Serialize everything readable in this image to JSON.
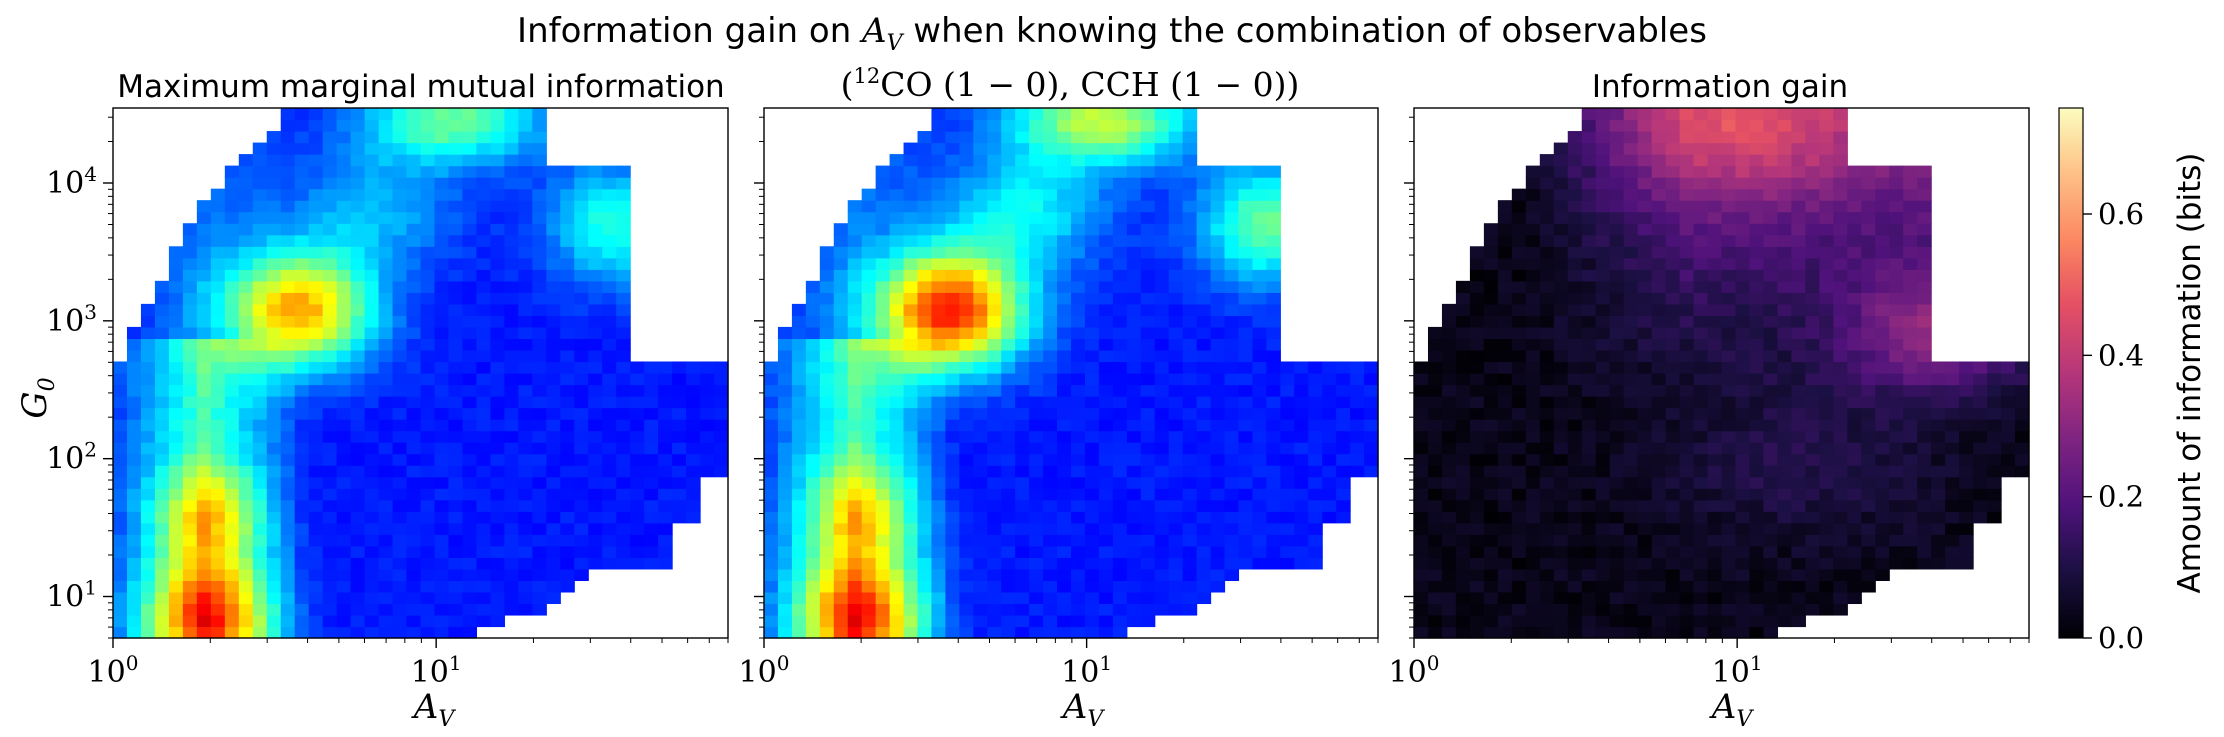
{
  "figure": {
    "title_plain": "Information gain on ",
    "title_var": "A",
    "title_sub": "V",
    "title_rest": " when knowing the combination of observables"
  },
  "colorbar": {
    "label": "Amount of information (bits)",
    "ticks": [
      "0.0",
      "0.2",
      "0.4",
      "0.6"
    ]
  },
  "chart_data": [
    {
      "type": "heatmap",
      "title": "Maximum marginal mutual information",
      "xlabel": "A_V",
      "ylabel": "G_0",
      "xscale": "log",
      "yscale": "log",
      "xlim": [
        1,
        80
      ],
      "ylim": [
        5,
        35000
      ],
      "x_ticks": [
        "10^0",
        "10^1"
      ],
      "y_ticks": [
        "10^1",
        "10^2",
        "10^3",
        "10^4"
      ],
      "colormap": "jet",
      "value_range": [
        0,
        0.75
      ],
      "description_peaks": [
        {
          "A_V": 3.8,
          "G_0": 1200,
          "value": 0.55
        },
        {
          "A_V": 2.0,
          "G_0": 8,
          "value": 0.5
        },
        {
          "A_V": 12,
          "G_0": 25000,
          "value": 0.35
        },
        {
          "A_V": 40,
          "G_0": 8000,
          "value": 0.3
        }
      ]
    },
    {
      "type": "heatmap",
      "title_tex_parts": [
        "(",
        "12",
        "CO (1 − 0), CCH (1 − 0))"
      ],
      "xlabel": "A_V",
      "xscale": "log",
      "yscale": "log",
      "xlim": [
        1,
        80
      ],
      "ylim": [
        5,
        35000
      ],
      "x_ticks": [
        "10^0",
        "10^1"
      ],
      "colormap": "jet",
      "value_range": [
        0,
        0.75
      ],
      "description_peaks": [
        {
          "A_V": 4.0,
          "G_0": 1200,
          "value": 0.68
        },
        {
          "A_V": 2.0,
          "G_0": 8,
          "value": 0.5
        },
        {
          "A_V": 12,
          "G_0": 25000,
          "value": 0.55
        },
        {
          "A_V": 40,
          "G_0": 8000,
          "value": 0.4
        }
      ]
    },
    {
      "type": "heatmap",
      "title": "Information gain",
      "xlabel": "A_V",
      "xscale": "log",
      "yscale": "log",
      "xlim": [
        1,
        80
      ],
      "ylim": [
        5,
        35000
      ],
      "x_ticks": [
        "10^0",
        "10^1"
      ],
      "colormap": "magma",
      "value_range": [
        0,
        0.75
      ],
      "description_peaks": [
        {
          "A_V": 10,
          "G_0": 25000,
          "value": 0.42
        },
        {
          "A_V": 40,
          "G_0": 900,
          "value": 0.38
        },
        {
          "A_V": 3,
          "G_0": 10,
          "value": 0.0
        }
      ]
    }
  ],
  "axis_text": {
    "x_base": "10",
    "x_exp0": "0",
    "x_exp1": "1",
    "y_exp1": "1",
    "y_exp2": "2",
    "y_exp3": "3",
    "y_exp4": "4",
    "x_var": "A",
    "x_sub": "V",
    "y_var": "G",
    "y_sub": "0"
  }
}
